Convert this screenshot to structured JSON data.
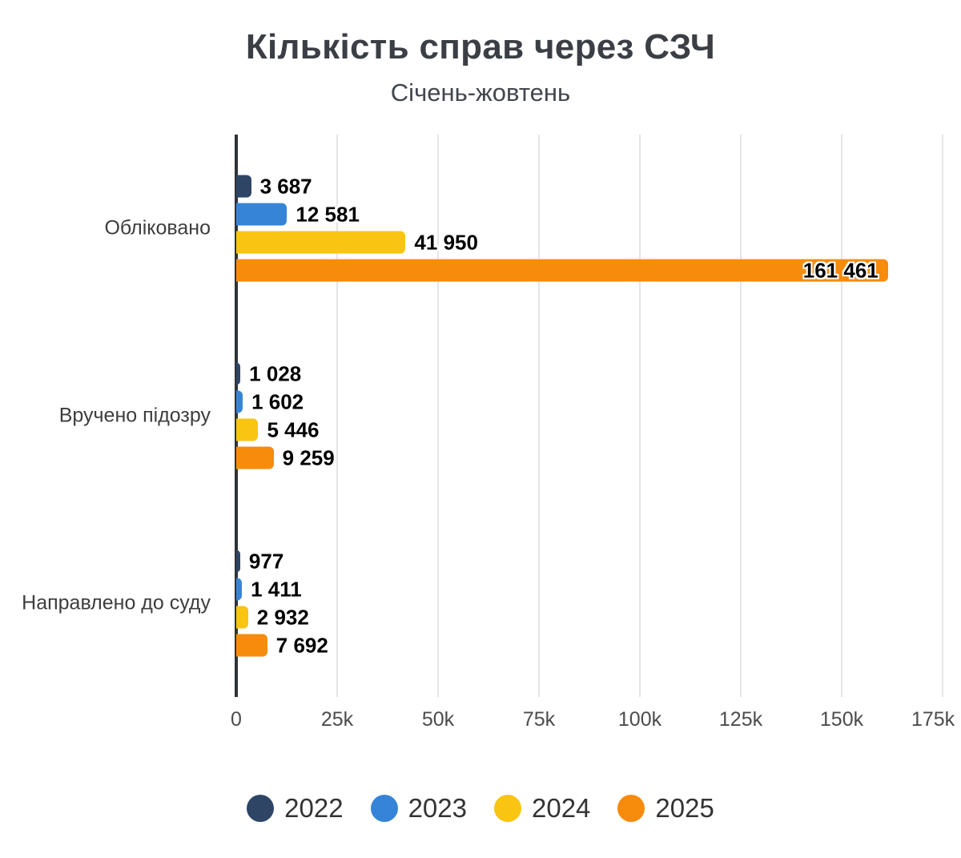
{
  "chart_data": {
    "type": "bar",
    "orientation": "horizontal",
    "title": "Кількість справ через СЗЧ",
    "subtitle": "Січень-жовтень",
    "categories": [
      "Обліковано",
      "Вручено підозру",
      "Направлено до суду"
    ],
    "series": [
      {
        "name": "2022",
        "color": "#2E4566",
        "values": [
          3687,
          1028,
          977
        ],
        "value_labels": [
          "3 687",
          "1 028",
          "977"
        ]
      },
      {
        "name": "2023",
        "color": "#3684D7",
        "values": [
          12581,
          1602,
          1411
        ],
        "value_labels": [
          "12 581",
          "1 602",
          "1 411"
        ]
      },
      {
        "name": "2024",
        "color": "#F9C412",
        "values": [
          41950,
          5446,
          2932
        ],
        "value_labels": [
          "41 950",
          "5 446",
          "2 932"
        ]
      },
      {
        "name": "2025",
        "color": "#F78B0B",
        "values": [
          161461,
          9259,
          7692
        ],
        "value_labels": [
          "161 461",
          "9 259",
          "7 692"
        ]
      }
    ],
    "xlim": [
      0,
      175000
    ],
    "x_ticks": [
      "0",
      "25k",
      "50k",
      "75k",
      "100k",
      "125k",
      "150k",
      "175k"
    ],
    "x_tick_values": [
      0,
      25000,
      50000,
      75000,
      100000,
      125000,
      150000,
      175000
    ],
    "grid": true,
    "legend_position": "bottom"
  }
}
